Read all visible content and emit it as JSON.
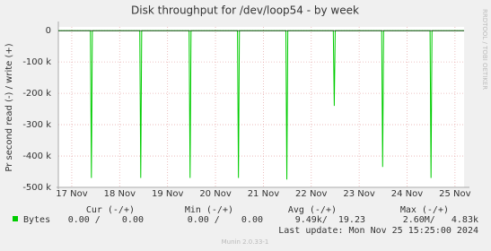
{
  "chart_data": {
    "type": "line",
    "title": "Disk throughput for /dev/loop54 - by week",
    "y_label": "Pr second read (-) / write (+)",
    "side_label": "RRDTOOL / TOBI OETIKER",
    "x": [
      16.72,
      17.39,
      17.41,
      17.43,
      18.42,
      18.44,
      18.46,
      19.45,
      19.47,
      19.49,
      20.46,
      20.48,
      20.5,
      21.47,
      21.49,
      21.51,
      22.46,
      22.48,
      22.5,
      23.47,
      23.49,
      23.51,
      24.48,
      24.5,
      24.52,
      25.19
    ],
    "series": [
      {
        "name": "Bytes",
        "color": "#00cc00",
        "values": [
          0,
          0,
          -470000,
          0,
          0,
          -470000,
          0,
          0,
          -470000,
          0,
          0,
          -470000,
          0,
          0,
          -475000,
          0,
          0,
          -240000,
          0,
          0,
          -435000,
          0,
          0,
          -470000,
          0,
          0
        ]
      }
    ],
    "xlim": [
      16.72,
      25.19
    ],
    "xticks": [
      {
        "value": 17,
        "label": "17 Nov"
      },
      {
        "value": 18,
        "label": "18 Nov"
      },
      {
        "value": 19,
        "label": "19 Nov"
      },
      {
        "value": 20,
        "label": "20 Nov"
      },
      {
        "value": 21,
        "label": "21 Nov"
      },
      {
        "value": 22,
        "label": "22 Nov"
      },
      {
        "value": 23,
        "label": "23 Nov"
      },
      {
        "value": 24,
        "label": "24 Nov"
      },
      {
        "value": 25,
        "label": "25 Nov"
      }
    ],
    "ylim": [
      -500000,
      12000
    ],
    "yticks": [
      0,
      {
        "value": -100000,
        "label": "-100 k"
      },
      {
        "value": -200000,
        "label": "-200 k"
      },
      {
        "value": -300000,
        "label": "-300 k"
      },
      {
        "value": -400000,
        "label": "-400 k"
      },
      {
        "value": -500000,
        "label": "-500 k"
      }
    ],
    "grid": true,
    "summary": {
      "headers": [
        "Cur (-/+)",
        "Min (-/+)",
        "Avg (-/+)",
        "Max (-/+)"
      ],
      "row": [
        "0.00 /    0.00",
        "0.00 /    0.00",
        "9.49k/  19.23",
        "2.60M/   4.83k"
      ],
      "last_update": "Last update: Mon Nov 25 15:25:00 2024",
      "footer": "Munin 2.0.33-1"
    }
  }
}
